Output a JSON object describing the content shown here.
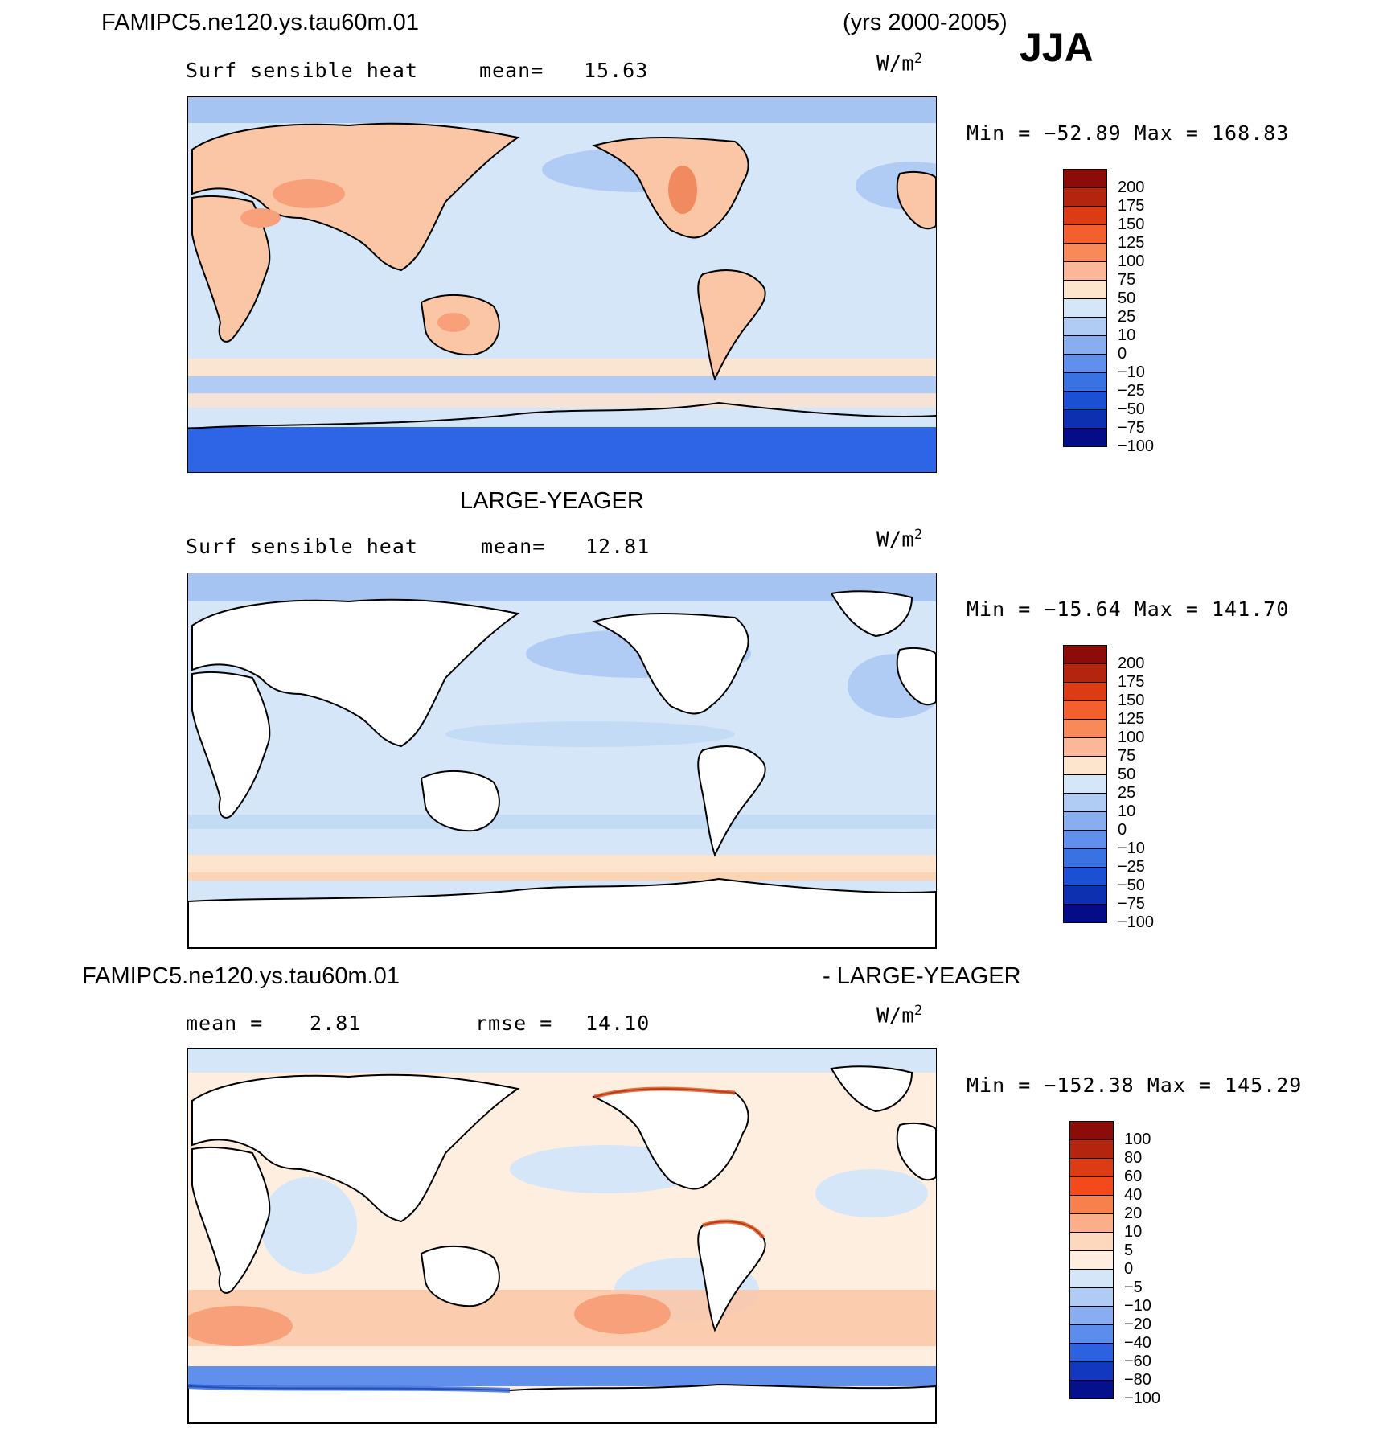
{
  "header": {
    "case_name": "FAMIPC5.ne120.ys.tau60m.01",
    "years": "(yrs 2000-2005)",
    "season": "JJA"
  },
  "panels": [
    {
      "title": "",
      "variable": "Surf sensible heat",
      "stat_label": "mean=",
      "stat_value": "15.63",
      "units": "W/m",
      "units_exp": "2",
      "minmax": "Min = −52.89 Max = 168.83",
      "colorbar_ticks": [
        "200",
        "175",
        "150",
        "125",
        "100",
        "75",
        "50",
        "25",
        "10",
        "0",
        "−10",
        "−25",
        "−50",
        "−75",
        "−100"
      ],
      "colorbar_colors": [
        "#8c0c08",
        "#b4240e",
        "#dc3c14",
        "#f26030",
        "#f88a5a",
        "#fbb898",
        "#fde4cc",
        "#d4e6f8",
        "#b0ccf4",
        "#88aef0",
        "#6090ec",
        "#3a72e4",
        "#1c50d4",
        "#0c30b0",
        "#040c88"
      ]
    },
    {
      "title": "LARGE-YEAGER",
      "variable": "Surf sensible heat",
      "stat_label": "mean=",
      "stat_value": "12.81",
      "units": "W/m",
      "units_exp": "2",
      "minmax": "Min = −15.64 Max = 141.70",
      "colorbar_ticks": [
        "200",
        "175",
        "150",
        "125",
        "100",
        "75",
        "50",
        "25",
        "10",
        "0",
        "−10",
        "−25",
        "−50",
        "−75",
        "−100"
      ],
      "colorbar_colors": [
        "#8c0c08",
        "#b4240e",
        "#dc3c14",
        "#f26030",
        "#f88a5a",
        "#fbb898",
        "#fde4cc",
        "#d4e6f8",
        "#b0ccf4",
        "#88aef0",
        "#6090ec",
        "#3a72e4",
        "#1c50d4",
        "#0c30b0",
        "#040c88"
      ]
    },
    {
      "title_left": "FAMIPC5.ne120.ys.tau60m.01",
      "title_right": "- LARGE-YEAGER",
      "stat1_label": "mean =",
      "stat1_value": "2.81",
      "stat2_label": "rmse =",
      "stat2_value": "14.10",
      "units": "W/m",
      "units_exp": "2",
      "minmax": "Min = −152.38 Max = 145.29",
      "colorbar_ticks": [
        "100",
        "80",
        "60",
        "40",
        "20",
        "10",
        "5",
        "0",
        "−5",
        "−10",
        "−20",
        "−40",
        "−60",
        "−80",
        "−100"
      ],
      "colorbar_colors": [
        "#8c0c08",
        "#b4240e",
        "#dc3c14",
        "#f24a1c",
        "#f8804c",
        "#fbae88",
        "#fdd8bc",
        "#fdeee0",
        "#d4e6f8",
        "#b0ccf4",
        "#88aef0",
        "#5c8cec",
        "#2c62e0",
        "#1238c0",
        "#04108c"
      ]
    }
  ]
}
